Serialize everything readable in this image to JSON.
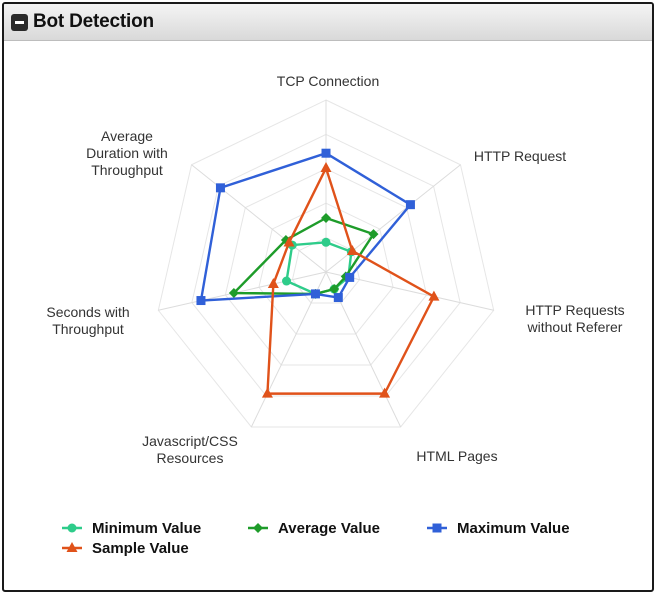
{
  "panel": {
    "title": "Bot Detection"
  },
  "chart_data": {
    "type": "radar",
    "title": "",
    "axes": [
      [
        "TCP Connection"
      ],
      [
        "HTTP Request"
      ],
      [
        "HTTP Requests",
        "without Referer"
      ],
      [
        "HTML Pages"
      ],
      [
        "Javascript/CSS",
        "Resources"
      ],
      [
        "Seconds with",
        "Throughput"
      ],
      [
        "Average",
        "Duration with",
        "Throughput"
      ]
    ],
    "range": [
      0,
      100
    ],
    "series": [
      {
        "name": "Minimum Value",
        "color": "#2ecc8a",
        "marker": "circle",
        "values": [
          22,
          24,
          17,
          14,
          18,
          30,
          32
        ]
      },
      {
        "name": "Average Value",
        "color": "#1e9c2a",
        "marker": "diamond",
        "values": [
          40,
          45,
          15,
          14,
          18,
          70,
          38
        ]
      },
      {
        "name": "Maximum Value",
        "color": "#3060d8",
        "marker": "square",
        "values": [
          88,
          80,
          18,
          21,
          18,
          95,
          100
        ]
      },
      {
        "name": "Sample Value",
        "color": "#e0521a",
        "marker": "triangle",
        "values": [
          77,
          25,
          82,
          100,
          100,
          40,
          35
        ]
      }
    ],
    "legend": {
      "placement": "bottom",
      "rows": [
        [
          "Minimum Value",
          "Average Value",
          "Maximum Value"
        ],
        [
          "Sample Value"
        ]
      ]
    }
  }
}
